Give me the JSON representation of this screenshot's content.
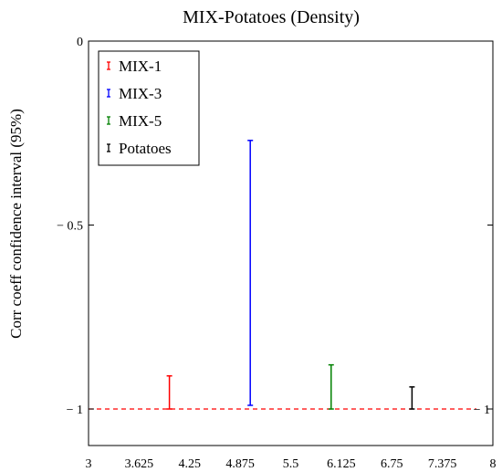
{
  "chart_data": {
    "type": "errorbar",
    "title": "MIX-Potatoes (Density)",
    "ylabel": "Corr coeff confidence interval (95%)",
    "xlabel": "",
    "xlim": [
      3,
      8
    ],
    "ylim": [
      -1.0,
      0.0
    ],
    "x_ticks": [
      "3",
      "3.625",
      "4.25",
      "4.875",
      "5.5",
      "6.125",
      "6.75",
      "7.375",
      "8"
    ],
    "y_ticks": [
      "0",
      "− 0.5",
      "− 1"
    ],
    "y_tick_values": [
      0,
      -0.5,
      -1
    ],
    "grid": false,
    "legend": "top-left",
    "series": [
      {
        "name": "MIX-1",
        "x": 4,
        "low": -1.0,
        "high": -0.91,
        "color": "#ff0000"
      },
      {
        "name": "MIX-3",
        "x": 5,
        "low": -0.99,
        "high": -0.27,
        "color": "#0000ff"
      },
      {
        "name": "MIX-5",
        "x": 6,
        "low": -1.0,
        "high": -0.88,
        "color": "#008000"
      },
      {
        "name": "Potatoes",
        "x": 7,
        "low": -1.0,
        "high": -0.94,
        "color": "#000000"
      }
    ],
    "reference_line": {
      "y": -1.0,
      "label": "− 1",
      "color": "#ff0000",
      "style": "dashed"
    }
  }
}
